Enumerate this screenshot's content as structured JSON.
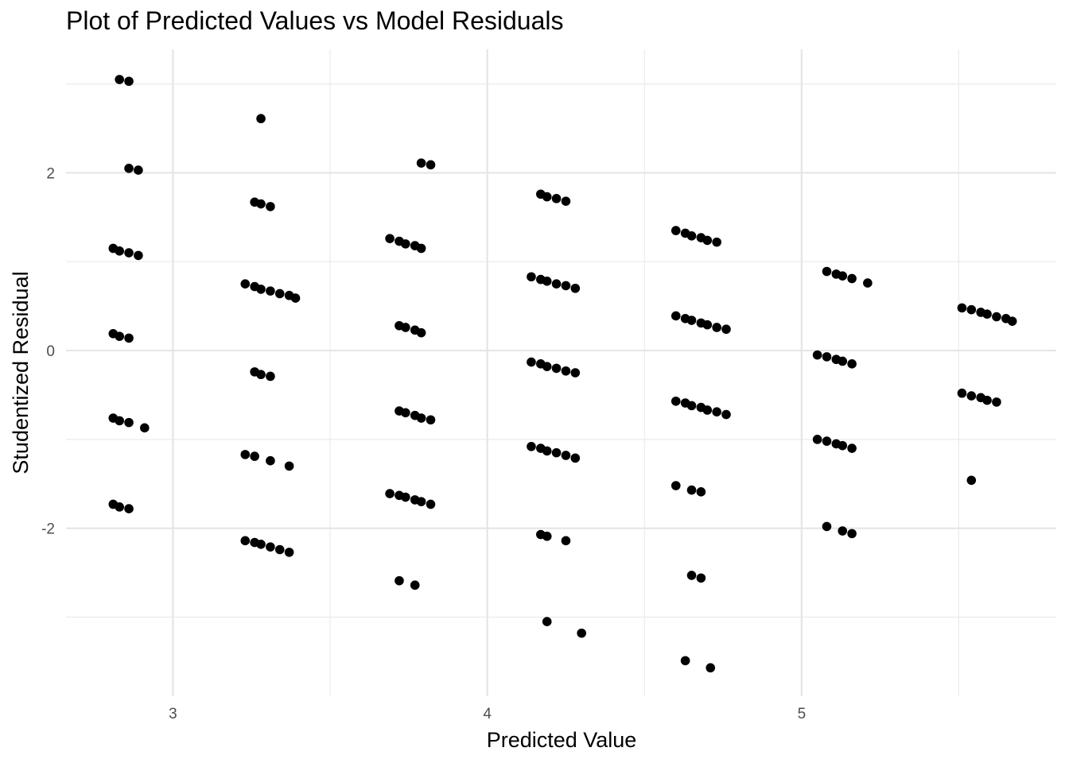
{
  "chart_data": {
    "type": "scatter",
    "title": "Plot of Predicted Values vs Model Residuals",
    "xlabel": "Predicted Value",
    "ylabel": "Studentized Residual",
    "xlim": [
      2.66,
      5.81
    ],
    "ylim": [
      -3.89,
      3.39
    ],
    "x_ticks": [
      3,
      4,
      5
    ],
    "x_tick_labels": [
      "3",
      "4",
      "5"
    ],
    "y_ticks": [
      -2,
      0,
      2
    ],
    "y_tick_labels": [
      "-2",
      "0",
      "2"
    ],
    "x_minor": [
      2.5,
      3.5,
      4.5,
      5.5
    ],
    "y_minor": [
      -3,
      -1,
      1,
      3
    ],
    "grid": true,
    "point_color": "#000000",
    "points": [
      {
        "x": 2.83,
        "y": 3.05
      },
      {
        "x": 2.86,
        "y": 3.03
      },
      {
        "x": 2.86,
        "y": 2.05
      },
      {
        "x": 2.89,
        "y": 2.03
      },
      {
        "x": 2.81,
        "y": 1.15
      },
      {
        "x": 2.83,
        "y": 1.12
      },
      {
        "x": 2.86,
        "y": 1.1
      },
      {
        "x": 2.89,
        "y": 1.07
      },
      {
        "x": 2.81,
        "y": 0.19
      },
      {
        "x": 2.83,
        "y": 0.16
      },
      {
        "x": 2.86,
        "y": 0.14
      },
      {
        "x": 2.81,
        "y": -0.76
      },
      {
        "x": 2.83,
        "y": -0.79
      },
      {
        "x": 2.86,
        "y": -0.81
      },
      {
        "x": 2.91,
        "y": -0.87
      },
      {
        "x": 2.81,
        "y": -1.73
      },
      {
        "x": 2.83,
        "y": -1.76
      },
      {
        "x": 2.86,
        "y": -1.78
      },
      {
        "x": 3.28,
        "y": 2.61
      },
      {
        "x": 3.26,
        "y": 1.67
      },
      {
        "x": 3.28,
        "y": 1.65
      },
      {
        "x": 3.31,
        "y": 1.62
      },
      {
        "x": 3.23,
        "y": 0.75
      },
      {
        "x": 3.26,
        "y": 0.72
      },
      {
        "x": 3.28,
        "y": 0.69
      },
      {
        "x": 3.31,
        "y": 0.67
      },
      {
        "x": 3.34,
        "y": 0.64
      },
      {
        "x": 3.37,
        "y": 0.62
      },
      {
        "x": 3.39,
        "y": 0.59
      },
      {
        "x": 3.26,
        "y": -0.24
      },
      {
        "x": 3.28,
        "y": -0.27
      },
      {
        "x": 3.31,
        "y": -0.29
      },
      {
        "x": 3.23,
        "y": -1.17
      },
      {
        "x": 3.26,
        "y": -1.19
      },
      {
        "x": 3.31,
        "y": -1.24
      },
      {
        "x": 3.37,
        "y": -1.3
      },
      {
        "x": 3.23,
        "y": -2.14
      },
      {
        "x": 3.26,
        "y": -2.16
      },
      {
        "x": 3.28,
        "y": -2.18
      },
      {
        "x": 3.31,
        "y": -2.21
      },
      {
        "x": 3.34,
        "y": -2.24
      },
      {
        "x": 3.37,
        "y": -2.27
      },
      {
        "x": 3.79,
        "y": 2.11
      },
      {
        "x": 3.82,
        "y": 2.09
      },
      {
        "x": 3.69,
        "y": 1.26
      },
      {
        "x": 3.72,
        "y": 1.23
      },
      {
        "x": 3.74,
        "y": 1.2
      },
      {
        "x": 3.77,
        "y": 1.18
      },
      {
        "x": 3.79,
        "y": 1.15
      },
      {
        "x": 3.72,
        "y": 0.28
      },
      {
        "x": 3.74,
        "y": 0.26
      },
      {
        "x": 3.77,
        "y": 0.23
      },
      {
        "x": 3.79,
        "y": 0.2
      },
      {
        "x": 3.72,
        "y": -0.68
      },
      {
        "x": 3.74,
        "y": -0.7
      },
      {
        "x": 3.77,
        "y": -0.73
      },
      {
        "x": 3.79,
        "y": -0.76
      },
      {
        "x": 3.82,
        "y": -0.78
      },
      {
        "x": 3.69,
        "y": -1.61
      },
      {
        "x": 3.72,
        "y": -1.63
      },
      {
        "x": 3.74,
        "y": -1.65
      },
      {
        "x": 3.77,
        "y": -1.68
      },
      {
        "x": 3.79,
        "y": -1.7
      },
      {
        "x": 3.82,
        "y": -1.73
      },
      {
        "x": 3.72,
        "y": -2.59
      },
      {
        "x": 3.77,
        "y": -2.64
      },
      {
        "x": 4.17,
        "y": 1.76
      },
      {
        "x": 4.19,
        "y": 1.73
      },
      {
        "x": 4.22,
        "y": 1.71
      },
      {
        "x": 4.25,
        "y": 1.68
      },
      {
        "x": 4.14,
        "y": 0.83
      },
      {
        "x": 4.17,
        "y": 0.8
      },
      {
        "x": 4.19,
        "y": 0.78
      },
      {
        "x": 4.22,
        "y": 0.75
      },
      {
        "x": 4.25,
        "y": 0.73
      },
      {
        "x": 4.28,
        "y": 0.7
      },
      {
        "x": 4.14,
        "y": -0.13
      },
      {
        "x": 4.17,
        "y": -0.15
      },
      {
        "x": 4.19,
        "y": -0.18
      },
      {
        "x": 4.22,
        "y": -0.2
      },
      {
        "x": 4.25,
        "y": -0.23
      },
      {
        "x": 4.28,
        "y": -0.25
      },
      {
        "x": 4.14,
        "y": -1.08
      },
      {
        "x": 4.17,
        "y": -1.1
      },
      {
        "x": 4.19,
        "y": -1.13
      },
      {
        "x": 4.22,
        "y": -1.15
      },
      {
        "x": 4.25,
        "y": -1.18
      },
      {
        "x": 4.28,
        "y": -1.21
      },
      {
        "x": 4.17,
        "y": -2.07
      },
      {
        "x": 4.19,
        "y": -2.09
      },
      {
        "x": 4.25,
        "y": -2.14
      },
      {
        "x": 4.19,
        "y": -3.05
      },
      {
        "x": 4.3,
        "y": -3.18
      },
      {
        "x": 4.6,
        "y": 1.35
      },
      {
        "x": 4.63,
        "y": 1.32
      },
      {
        "x": 4.65,
        "y": 1.29
      },
      {
        "x": 4.68,
        "y": 1.27
      },
      {
        "x": 4.7,
        "y": 1.24
      },
      {
        "x": 4.73,
        "y": 1.22
      },
      {
        "x": 4.6,
        "y": 0.39
      },
      {
        "x": 4.63,
        "y": 0.36
      },
      {
        "x": 4.65,
        "y": 0.34
      },
      {
        "x": 4.68,
        "y": 0.31
      },
      {
        "x": 4.7,
        "y": 0.29
      },
      {
        "x": 4.73,
        "y": 0.26
      },
      {
        "x": 4.76,
        "y": 0.24
      },
      {
        "x": 4.6,
        "y": -0.57
      },
      {
        "x": 4.63,
        "y": -0.59
      },
      {
        "x": 4.65,
        "y": -0.62
      },
      {
        "x": 4.68,
        "y": -0.64
      },
      {
        "x": 4.7,
        "y": -0.67
      },
      {
        "x": 4.73,
        "y": -0.69
      },
      {
        "x": 4.76,
        "y": -0.72
      },
      {
        "x": 4.6,
        "y": -1.52
      },
      {
        "x": 4.65,
        "y": -1.57
      },
      {
        "x": 4.68,
        "y": -1.59
      },
      {
        "x": 4.65,
        "y": -2.53
      },
      {
        "x": 4.68,
        "y": -2.56
      },
      {
        "x": 4.63,
        "y": -3.49
      },
      {
        "x": 4.71,
        "y": -3.57
      },
      {
        "x": 5.08,
        "y": 0.89
      },
      {
        "x": 5.11,
        "y": 0.86
      },
      {
        "x": 5.13,
        "y": 0.84
      },
      {
        "x": 5.16,
        "y": 0.81
      },
      {
        "x": 5.21,
        "y": 0.76
      },
      {
        "x": 5.05,
        "y": -0.05
      },
      {
        "x": 5.08,
        "y": -0.07
      },
      {
        "x": 5.11,
        "y": -0.1
      },
      {
        "x": 5.13,
        "y": -0.12
      },
      {
        "x": 5.16,
        "y": -0.15
      },
      {
        "x": 5.05,
        "y": -1.0
      },
      {
        "x": 5.08,
        "y": -1.02
      },
      {
        "x": 5.11,
        "y": -1.05
      },
      {
        "x": 5.13,
        "y": -1.07
      },
      {
        "x": 5.16,
        "y": -1.1
      },
      {
        "x": 5.08,
        "y": -1.98
      },
      {
        "x": 5.13,
        "y": -2.03
      },
      {
        "x": 5.16,
        "y": -2.06
      },
      {
        "x": 5.51,
        "y": 0.48
      },
      {
        "x": 5.54,
        "y": 0.46
      },
      {
        "x": 5.57,
        "y": 0.43
      },
      {
        "x": 5.59,
        "y": 0.41
      },
      {
        "x": 5.62,
        "y": 0.38
      },
      {
        "x": 5.65,
        "y": 0.36
      },
      {
        "x": 5.67,
        "y": 0.33
      },
      {
        "x": 5.51,
        "y": -0.48
      },
      {
        "x": 5.54,
        "y": -0.51
      },
      {
        "x": 5.57,
        "y": -0.53
      },
      {
        "x": 5.59,
        "y": -0.56
      },
      {
        "x": 5.62,
        "y": -0.58
      },
      {
        "x": 5.54,
        "y": -1.46
      }
    ]
  }
}
